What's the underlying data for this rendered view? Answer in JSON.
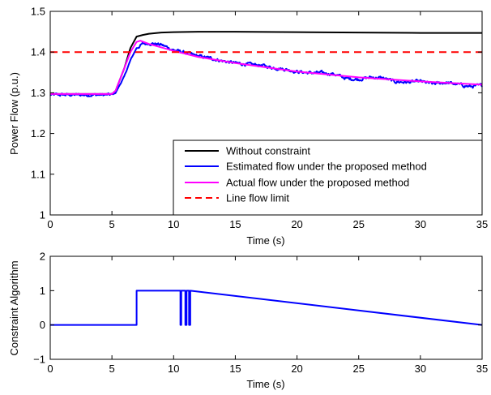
{
  "chart_data": [
    {
      "type": "line",
      "xlabel": "Time (s)",
      "ylabel": "Power Flow (p.u.)",
      "xlim": [
        0,
        35
      ],
      "ylim": [
        1.0,
        1.5
      ],
      "xticks": [
        0,
        5,
        10,
        15,
        20,
        25,
        30,
        35
      ],
      "yticks": [
        1,
        1.1,
        1.2,
        1.3,
        1.4,
        1.5
      ],
      "ytick_labels": [
        "1",
        "1.1",
        "1.2",
        "1.3",
        "1.4",
        "1.5"
      ],
      "grid": false,
      "legend_position": "bottom-right",
      "series": [
        {
          "name": "Without constraint",
          "color": "#000000",
          "style": "solid",
          "x": [
            0,
            5,
            5.3,
            6,
            6.5,
            7,
            7.5,
            8,
            9,
            10,
            12,
            15,
            20,
            25,
            30,
            35
          ],
          "y": [
            1.297,
            1.297,
            1.305,
            1.36,
            1.41,
            1.438,
            1.442,
            1.445,
            1.448,
            1.449,
            1.45,
            1.45,
            1.449,
            1.448,
            1.447,
            1.447
          ]
        },
        {
          "name": "Estimated flow under the proposed method",
          "color": "#0000ff",
          "style": "solid",
          "noisy": true,
          "x": [
            0,
            5,
            5.3,
            6,
            6.5,
            7,
            7.5,
            8,
            9,
            10,
            11,
            12,
            13,
            14,
            15,
            16,
            17,
            18,
            19,
            20,
            21,
            22,
            23,
            24,
            25,
            26,
            27,
            28,
            29,
            30,
            31,
            32,
            33,
            34,
            35
          ],
          "y": [
            1.295,
            1.295,
            1.3,
            1.34,
            1.38,
            1.41,
            1.42,
            1.422,
            1.418,
            1.405,
            1.398,
            1.39,
            1.385,
            1.378,
            1.373,
            1.37,
            1.368,
            1.362,
            1.358,
            1.352,
            1.349,
            1.349,
            1.346,
            1.335,
            1.333,
            1.338,
            1.336,
            1.327,
            1.326,
            1.328,
            1.322,
            1.325,
            1.321,
            1.315,
            1.318
          ]
        },
        {
          "name": "Actual flow under the proposed method",
          "color": "#ff00ff",
          "style": "solid",
          "x": [
            0,
            5,
            5.3,
            6,
            6.5,
            7,
            7.3,
            8,
            10,
            12,
            15,
            20,
            25,
            30,
            35
          ],
          "y": [
            1.297,
            1.297,
            1.305,
            1.36,
            1.4,
            1.425,
            1.428,
            1.42,
            1.403,
            1.388,
            1.373,
            1.352,
            1.338,
            1.328,
            1.32
          ]
        },
        {
          "name": "Line flow limit",
          "color": "#ff0000",
          "style": "dashed",
          "x": [
            0,
            35
          ],
          "y": [
            1.4,
            1.4
          ]
        }
      ]
    },
    {
      "type": "line",
      "xlabel": "Time (s)",
      "ylabel": "Constraint Algorithm",
      "xlim": [
        0,
        35
      ],
      "ylim": [
        -1,
        2
      ],
      "xticks": [
        0,
        5,
        10,
        15,
        20,
        25,
        30,
        35
      ],
      "yticks": [
        -1,
        0,
        1,
        2
      ],
      "ytick_labels": [
        "−1",
        "0",
        "1",
        "2"
      ],
      "grid": false,
      "series": [
        {
          "color": "#0000ff",
          "style": "solid",
          "x": [
            0,
            7,
            7,
            10.55,
            10.55,
            10.62,
            10.62,
            10.95,
            10.95,
            11.05,
            11.05,
            11.25,
            11.25,
            11.35,
            11.35,
            35
          ],
          "y": [
            0,
            0,
            1,
            1,
            0,
            0,
            1,
            1,
            0,
            0,
            1,
            1,
            0,
            0,
            1,
            0
          ]
        }
      ]
    }
  ]
}
